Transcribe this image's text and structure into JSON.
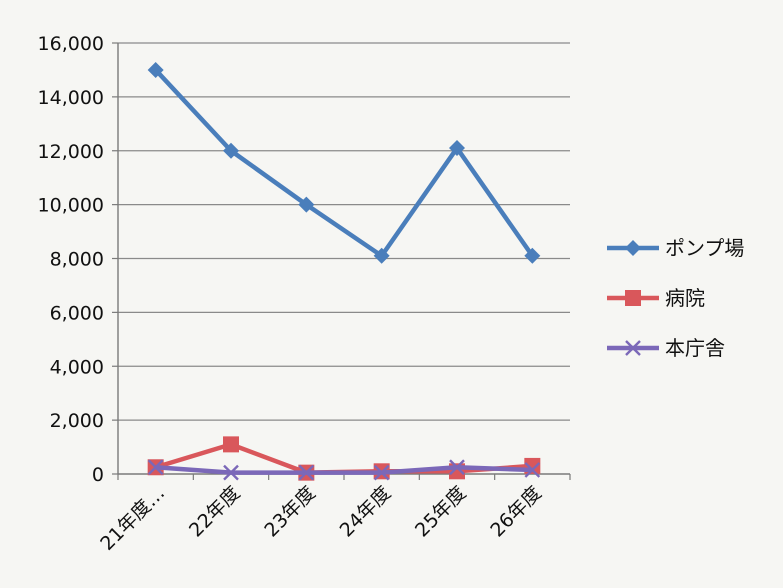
{
  "chart_data": {
    "type": "line",
    "title": "",
    "xlabel": "",
    "ylabel": "",
    "categories": [
      "21年度…",
      "22年度",
      "23年度",
      "24年度",
      "25年度",
      "26年度"
    ],
    "ylim": [
      0,
      16000
    ],
    "yticks": [
      0,
      2000,
      4000,
      6000,
      8000,
      10000,
      12000,
      14000,
      16000
    ],
    "ytick_labels": [
      "0",
      "2,000",
      "4,000",
      "6,000",
      "8,000",
      "10,000",
      "12,000",
      "14,000",
      "16,000"
    ],
    "grid": true,
    "legend_position": "right",
    "series": [
      {
        "name": "ポンプ場",
        "marker": "diamond",
        "color": "#4a7ebb",
        "values": [
          15000,
          12000,
          10000,
          8100,
          12100,
          8100
        ]
      },
      {
        "name": "病院",
        "marker": "square",
        "color": "#d9575b",
        "values": [
          250,
          1100,
          50,
          100,
          100,
          300
        ]
      },
      {
        "name": "本庁舎",
        "marker": "x",
        "color": "#7b68b8",
        "values": [
          250,
          50,
          50,
          50,
          250,
          150
        ]
      }
    ]
  }
}
